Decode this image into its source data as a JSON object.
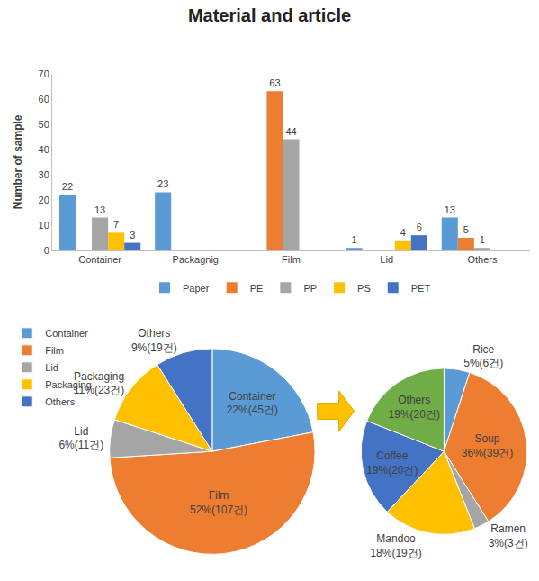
{
  "chart_data": [
    {
      "type": "bar",
      "title": "Material and article",
      "y_label": "Number of sample",
      "categories": [
        "Container",
        "Packagnig",
        "Film",
        "Lid",
        "Others"
      ],
      "series": [
        {
          "name": "Paper",
          "color": "#5B9BD5",
          "values": [
            22,
            23,
            null,
            1,
            13
          ]
        },
        {
          "name": "PE",
          "color": "#ED7D31",
          "values": [
            null,
            null,
            63,
            null,
            5
          ]
        },
        {
          "name": "PP",
          "color": "#A5A5A5",
          "values": [
            13,
            null,
            44,
            null,
            1
          ]
        },
        {
          "name": "PS",
          "color": "#FFC000",
          "values": [
            7,
            null,
            null,
            4,
            null
          ]
        },
        {
          "name": "PET",
          "color": "#4472C4",
          "values": [
            3,
            null,
            null,
            6,
            null
          ]
        }
      ],
      "ylim": [
        0,
        70
      ],
      "yticks": [
        0,
        10,
        20,
        30,
        40,
        50,
        60,
        70
      ],
      "grid": false,
      "legend": "bottom",
      "data_labels": true
    },
    {
      "type": "pie",
      "categories": [
        "Container",
        "Film",
        "Lid",
        "Packaging",
        "Others"
      ],
      "values": [
        22,
        52,
        6,
        11,
        9
      ],
      "value_labels": [
        "22%(45건)",
        "52%(107건)",
        "6%(11건)",
        "11%(23건)",
        "9%(19건)"
      ],
      "colors": [
        "#5B9BD5",
        "#ED7D31",
        "#A5A5A5",
        "#FFC000",
        "#4472C4"
      ],
      "legend": "left",
      "data_labels": true
    },
    {
      "type": "pie",
      "categories": [
        "Rice",
        "Soup",
        "Ramen",
        "Mandoo",
        "Coffee",
        "Others"
      ],
      "values": [
        5,
        36,
        3,
        18,
        19,
        19
      ],
      "value_labels": [
        "5%(6건)",
        "36%(39건)",
        "3%(3건)",
        "18%(19건)",
        "19%(20건)",
        "19%(20건)"
      ],
      "colors": [
        "#5B9BD5",
        "#ED7D31",
        "#A5A5A5",
        "#FFC000",
        "#4472C4",
        "#70AD47"
      ],
      "data_labels": true
    }
  ]
}
